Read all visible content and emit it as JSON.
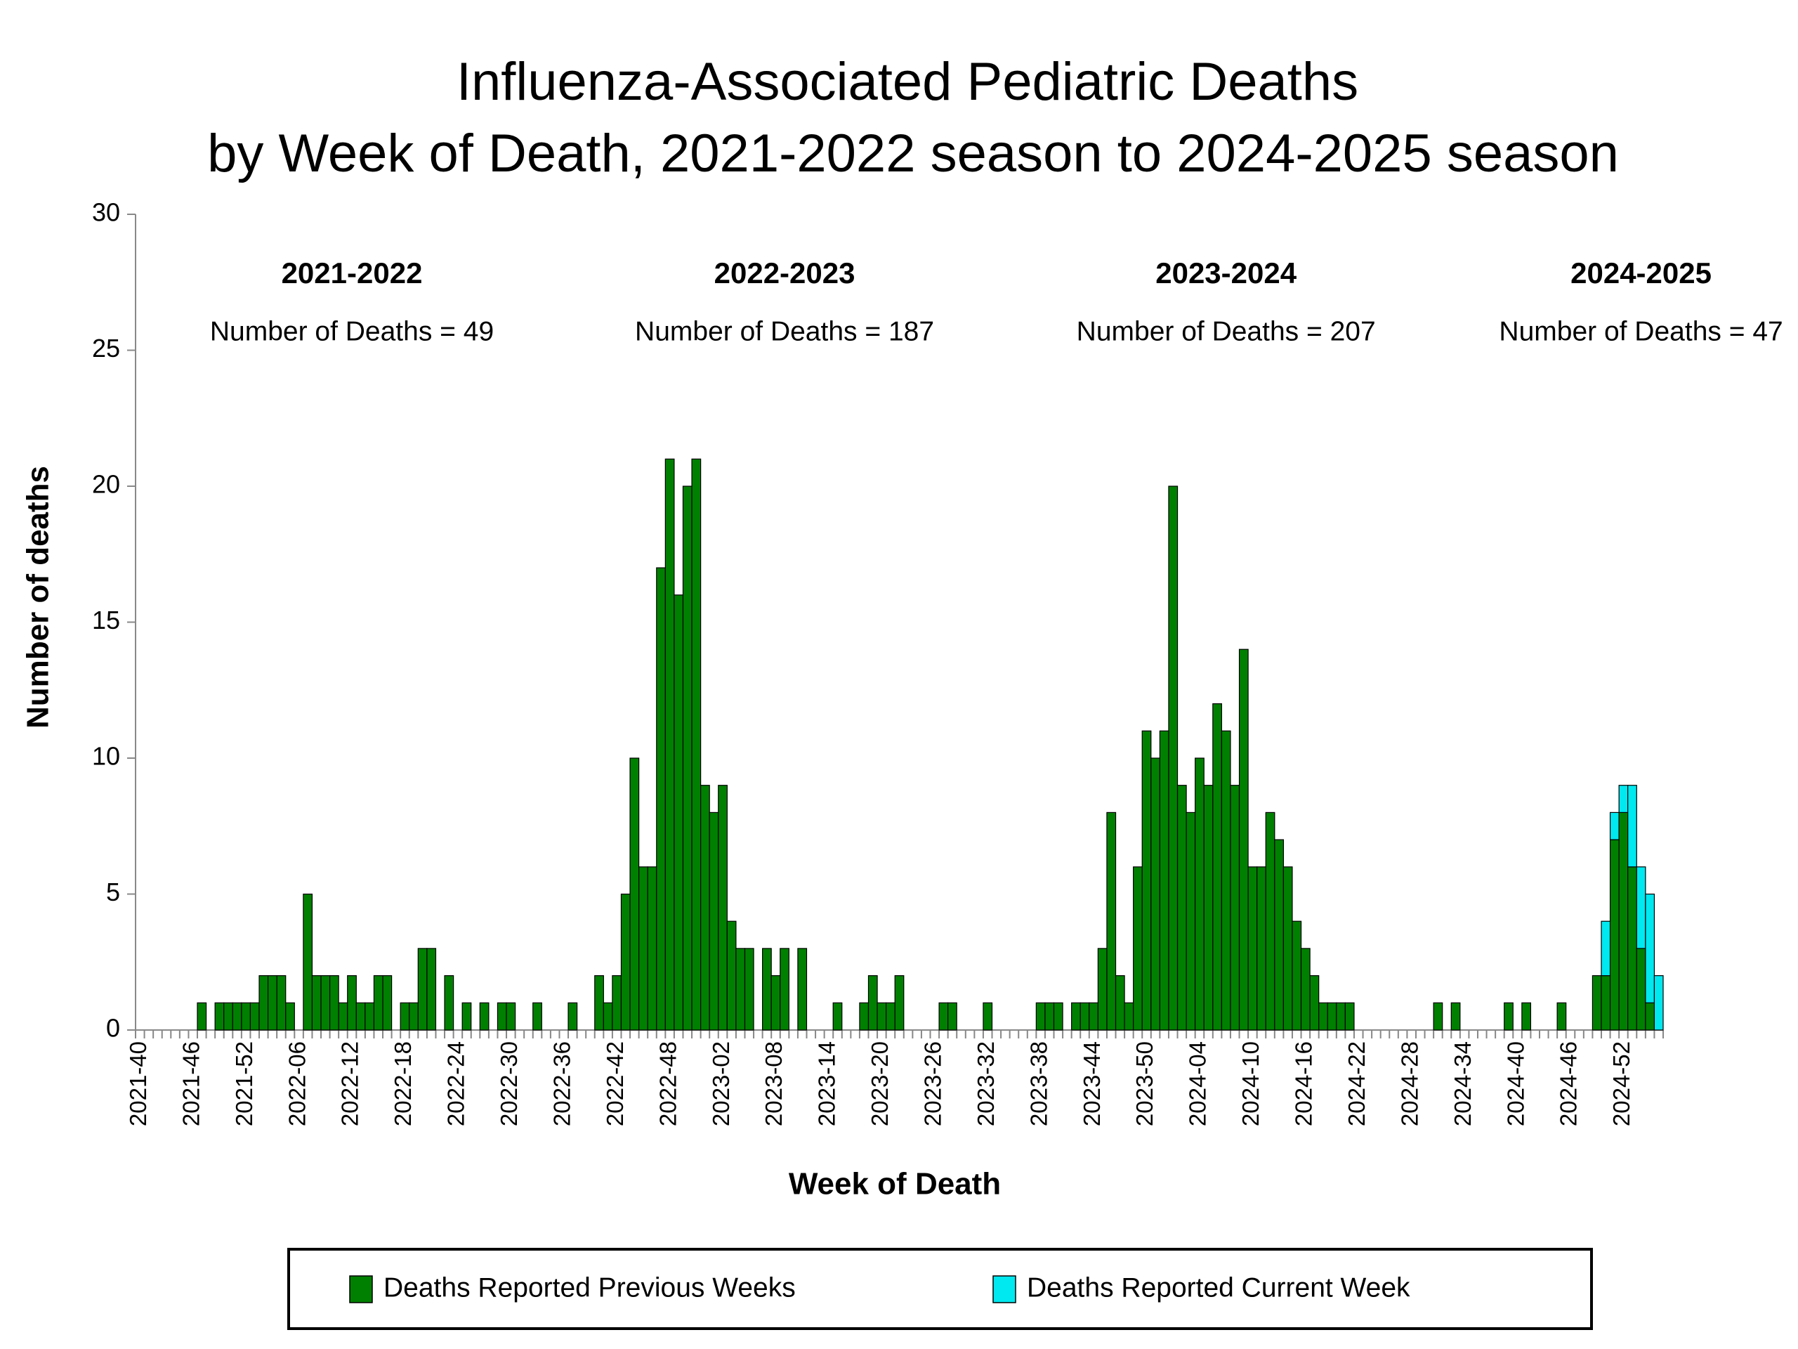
{
  "chart_data": {
    "type": "stacked_bar",
    "title": [
      "Influenza-Associated Pediatric Deaths",
      "by Week of Death, 2021-2022 season to 2024-2025 season"
    ],
    "x_label": "Week of Death",
    "y_label": "Number of deaths",
    "ylim": [
      0,
      30
    ],
    "yticks": [
      0,
      5,
      10,
      15,
      20,
      25,
      30
    ],
    "legend": "bottom",
    "annotations": [
      {
        "title": "2021-2022",
        "text": "Number of Deaths = 49",
        "category": 24
      },
      {
        "title": "2022-2023",
        "text": "Number of Deaths = 187",
        "category": 73
      },
      {
        "title": "2023-2024",
        "text": "Number of Deaths = 207",
        "category": 123
      },
      {
        "title": "2024-2025",
        "text": "Number of Deaths = 47",
        "category": 170
      }
    ],
    "categories": [
      "2021-40",
      null,
      null,
      null,
      null,
      null,
      "2021-46",
      null,
      null,
      null,
      null,
      null,
      "2021-52",
      null,
      null,
      null,
      null,
      null,
      "2022-06",
      null,
      null,
      null,
      null,
      null,
      "2022-12",
      null,
      null,
      null,
      null,
      null,
      "2022-18",
      null,
      null,
      null,
      null,
      null,
      "2022-24",
      null,
      null,
      null,
      null,
      null,
      "2022-30",
      null,
      null,
      null,
      null,
      null,
      "2022-36",
      null,
      null,
      null,
      null,
      null,
      "2022-42",
      null,
      null,
      null,
      null,
      null,
      "2022-48",
      null,
      null,
      null,
      null,
      null,
      "2023-02",
      null,
      null,
      null,
      null,
      null,
      "2023-08",
      null,
      null,
      null,
      null,
      null,
      "2023-14",
      null,
      null,
      null,
      null,
      null,
      "2023-20",
      null,
      null,
      null,
      null,
      null,
      "2023-26",
      null,
      null,
      null,
      null,
      null,
      "2023-32",
      null,
      null,
      null,
      null,
      null,
      "2023-38",
      null,
      null,
      null,
      null,
      null,
      "2023-44",
      null,
      null,
      null,
      null,
      null,
      "2023-50",
      null,
      null,
      null,
      null,
      null,
      "2024-04",
      null,
      null,
      null,
      null,
      null,
      "2024-10",
      null,
      null,
      null,
      null,
      null,
      "2024-16",
      null,
      null,
      null,
      null,
      null,
      "2024-22",
      null,
      null,
      null,
      null,
      null,
      "2024-28",
      null,
      null,
      null,
      null,
      null,
      "2024-34",
      null,
      null,
      null,
      null,
      null,
      "2024-40",
      null,
      null,
      null,
      null,
      null,
      "2024-46",
      null,
      null,
      null,
      null,
      null,
      "2024-52",
      null,
      null,
      null,
      null
    ],
    "series": [
      {
        "name": "Deaths Reported Previous Weeks",
        "color": "#008000",
        "values": [
          0,
          0,
          0,
          0,
          0,
          0,
          0,
          1,
          0,
          1,
          1,
          1,
          1,
          1,
          2,
          2,
          2,
          1,
          0,
          5,
          2,
          2,
          2,
          1,
          2,
          1,
          1,
          2,
          2,
          0,
          1,
          1,
          3,
          3,
          0,
          2,
          0,
          1,
          0,
          1,
          0,
          1,
          1,
          0,
          0,
          1,
          0,
          0,
          0,
          1,
          0,
          0,
          2,
          1,
          2,
          5,
          10,
          6,
          6,
          17,
          21,
          16,
          20,
          21,
          9,
          8,
          9,
          4,
          3,
          3,
          0,
          3,
          2,
          3,
          0,
          3,
          0,
          0,
          0,
          1,
          0,
          0,
          1,
          2,
          1,
          1,
          2,
          0,
          0,
          0,
          0,
          1,
          1,
          0,
          0,
          0,
          1,
          0,
          0,
          0,
          0,
          0,
          1,
          1,
          1,
          0,
          1,
          1,
          1,
          3,
          8,
          2,
          1,
          6,
          11,
          10,
          11,
          20,
          9,
          8,
          10,
          9,
          12,
          11,
          9,
          14,
          6,
          6,
          8,
          7,
          6,
          4,
          3,
          2,
          1,
          1,
          1,
          1,
          0,
          0,
          0,
          0,
          0,
          0,
          0,
          0,
          0,
          1,
          0,
          1,
          0,
          0,
          0,
          0,
          0,
          1,
          0,
          1,
          0,
          0,
          0,
          1,
          0,
          0,
          0,
          2,
          2,
          7,
          8,
          6,
          3,
          1,
          0
        ]
      },
      {
        "name": "Deaths Reported Current Week",
        "color": "#00e8f0",
        "values": [
          0,
          0,
          0,
          0,
          0,
          0,
          0,
          0,
          0,
          0,
          0,
          0,
          0,
          0,
          0,
          0,
          0,
          0,
          0,
          0,
          0,
          0,
          0,
          0,
          0,
          0,
          0,
          0,
          0,
          0,
          0,
          0,
          0,
          0,
          0,
          0,
          0,
          0,
          0,
          0,
          0,
          0,
          0,
          0,
          0,
          0,
          0,
          0,
          0,
          0,
          0,
          0,
          0,
          0,
          0,
          0,
          0,
          0,
          0,
          0,
          0,
          0,
          0,
          0,
          0,
          0,
          0,
          0,
          0,
          0,
          0,
          0,
          0,
          0,
          0,
          0,
          0,
          0,
          0,
          0,
          0,
          0,
          0,
          0,
          0,
          0,
          0,
          0,
          0,
          0,
          0,
          0,
          0,
          0,
          0,
          0,
          0,
          0,
          0,
          0,
          0,
          0,
          0,
          0,
          0,
          0,
          0,
          0,
          0,
          0,
          0,
          0,
          0,
          0,
          0,
          0,
          0,
          0,
          0,
          0,
          0,
          0,
          0,
          0,
          0,
          0,
          0,
          0,
          0,
          0,
          0,
          0,
          0,
          0,
          0,
          0,
          0,
          0,
          0,
          0,
          0,
          0,
          0,
          0,
          0,
          0,
          0,
          0,
          0,
          0,
          0,
          0,
          0,
          0,
          0,
          0,
          0,
          0,
          0,
          0,
          0,
          0,
          0,
          0,
          0,
          0,
          2,
          1,
          1,
          3,
          3,
          4,
          2
        ]
      }
    ]
  }
}
